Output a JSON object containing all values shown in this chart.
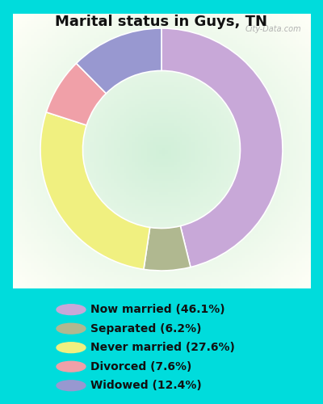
{
  "title": "Marital status in Guys, TN",
  "title_fontsize": 13,
  "title_fontweight": "bold",
  "slices": [
    {
      "label": "Now married (46.1%)",
      "value": 46.1,
      "color": "#C8A8D8"
    },
    {
      "label": "Separated (6.2%)",
      "value": 6.2,
      "color": "#B0B890"
    },
    {
      "label": "Never married (27.6%)",
      "value": 27.6,
      "color": "#F0F080"
    },
    {
      "label": "Divorced (7.6%)",
      "value": 7.6,
      "color": "#F0A0A8"
    },
    {
      "label": "Widowed (12.4%)",
      "value": 12.4,
      "color": "#9898D0"
    }
  ],
  "legend_fontsize": 10,
  "watermark": "City-Data.com",
  "background_outer": "#00DCDC",
  "fig_width": 4.0,
  "fig_height": 5.0,
  "dpi": 100,
  "startangle": 90
}
